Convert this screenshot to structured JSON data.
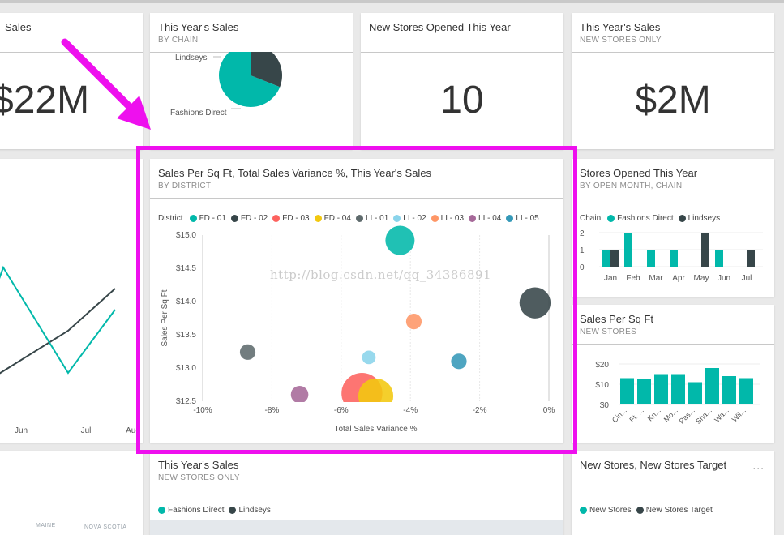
{
  "colors": {
    "teal": "#01b8aa",
    "dark": "#374649",
    "red": "#fd625e",
    "yellow": "#f2c80f",
    "gray": "#5f6b6d",
    "lightblue": "#8ad4eb",
    "orange": "#fe9666",
    "purple": "#a66999",
    "blue": "#3599b8",
    "highlight": "#ee10ee"
  },
  "tile_sales_left": {
    "title": "Sales",
    "value": "$22M"
  },
  "tile_sales_chain": {
    "title": "This Year's Sales",
    "subtitle": "BY CHAIN",
    "chart_data": {
      "type": "pie",
      "labels": [
        "Lindseys",
        "Fashions Direct"
      ],
      "values": [
        31,
        69
      ]
    }
  },
  "tile_new_stores": {
    "title": "New Stores Opened This Year",
    "value": "10"
  },
  "tile_sales_new": {
    "title": "This Year's Sales",
    "subtitle": "NEW STORES ONLY",
    "value": "$2M"
  },
  "tile_line": {
    "x_labels": [
      "Jun",
      "Jul",
      "Aug"
    ],
    "chart_data": {
      "type": "line",
      "categories": [
        "Jun",
        "Jul",
        "Aug"
      ],
      "series": [
        {
          "values": [
            null,
            6,
            10
          ]
        },
        {
          "values": [
            12,
            2,
            8
          ]
        }
      ]
    }
  },
  "tile_scatter": {
    "title": "Sales Per Sq Ft, Total Sales Variance %, This Year's Sales",
    "subtitle": "BY DISTRICT",
    "legend_title": "District",
    "watermark": "http://blog.csdn.net/qq_34386891",
    "chart_data": {
      "type": "scatter",
      "xlabel": "Total Sales Variance %",
      "ylabel": "Sales Per Sq Ft",
      "xlim": [
        -10,
        0
      ],
      "ylim": [
        12.5,
        15.0
      ],
      "x_ticks": [
        "-10%",
        "-8%",
        "-6%",
        "-4%",
        "-2%",
        "0%"
      ],
      "y_ticks": [
        "$12.5",
        "$13.0",
        "$13.5",
        "$14.0",
        "$14.5",
        "$15.0"
      ],
      "series": [
        {
          "name": "FD - 01",
          "color": "#01b8aa",
          "x": -4.3,
          "y": 14.92,
          "size": 1.5
        },
        {
          "name": "FD - 02",
          "color": "#374649",
          "x": -0.4,
          "y": 13.98,
          "size": 1.6
        },
        {
          "name": "FD - 03",
          "color": "#fd625e",
          "x": -5.4,
          "y": 12.62,
          "size": 2.1
        },
        {
          "name": "FD - 04",
          "color": "#f2c80f",
          "x": -5.0,
          "y": 12.58,
          "size": 1.8
        },
        {
          "name": "LI - 01",
          "color": "#5f6b6d",
          "x": -8.7,
          "y": 13.24,
          "size": 0.8
        },
        {
          "name": "LI - 02",
          "color": "#8ad4eb",
          "x": -5.2,
          "y": 13.16,
          "size": 0.7
        },
        {
          "name": "LI - 03",
          "color": "#fe9666",
          "x": -3.9,
          "y": 13.7,
          "size": 0.8
        },
        {
          "name": "LI - 04",
          "color": "#a66999",
          "x": -7.2,
          "y": 12.6,
          "size": 0.9
        },
        {
          "name": "LI - 05",
          "color": "#3599b8",
          "x": -2.6,
          "y": 13.1,
          "size": 0.8
        }
      ]
    }
  },
  "tile_stores_month": {
    "title": "Stores Opened This Year",
    "subtitle": "BY OPEN MONTH, CHAIN",
    "legend_title": "Chain",
    "chart_data": {
      "type": "bar",
      "categories": [
        "Jan",
        "Feb",
        "Mar",
        "Apr",
        "May",
        "Jun",
        "Jul"
      ],
      "y_ticks": [
        "0",
        "1",
        "2"
      ],
      "ylim": [
        0,
        2
      ],
      "series": [
        {
          "name": "Fashions Direct",
          "color": "#01b8aa",
          "values": [
            1,
            2,
            1,
            1,
            0,
            1,
            0
          ]
        },
        {
          "name": "Lindseys",
          "color": "#374649",
          "values": [
            1,
            0,
            0,
            0,
            2,
            0,
            1
          ]
        }
      ]
    }
  },
  "tile_sqft": {
    "title": "Sales Per Sq Ft",
    "subtitle": "NEW STORES",
    "chart_data": {
      "type": "bar",
      "categories": [
        "Cin...",
        "Ft. ...",
        "Kn...",
        "Mo...",
        "Pas...",
        "Sha...",
        "Wa...",
        "Wil..."
      ],
      "y_ticks": [
        "$0",
        "$10",
        "$20"
      ],
      "ylim": [
        0,
        22
      ],
      "values": [
        13,
        12.5,
        15,
        15,
        11,
        18,
        14,
        13
      ]
    }
  },
  "tile_bottom_sales": {
    "title": "This Year's Sales",
    "subtitle": "NEW STORES ONLY",
    "legend": [
      "Fashions Direct",
      "Lindseys"
    ],
    "map_labels": [
      "MAINE",
      "NOVA SCOTIA"
    ]
  },
  "tile_bottom_target": {
    "title": "New Stores, New Stores Target",
    "more": "...",
    "legend": [
      "New Stores",
      "New Stores Target"
    ]
  }
}
